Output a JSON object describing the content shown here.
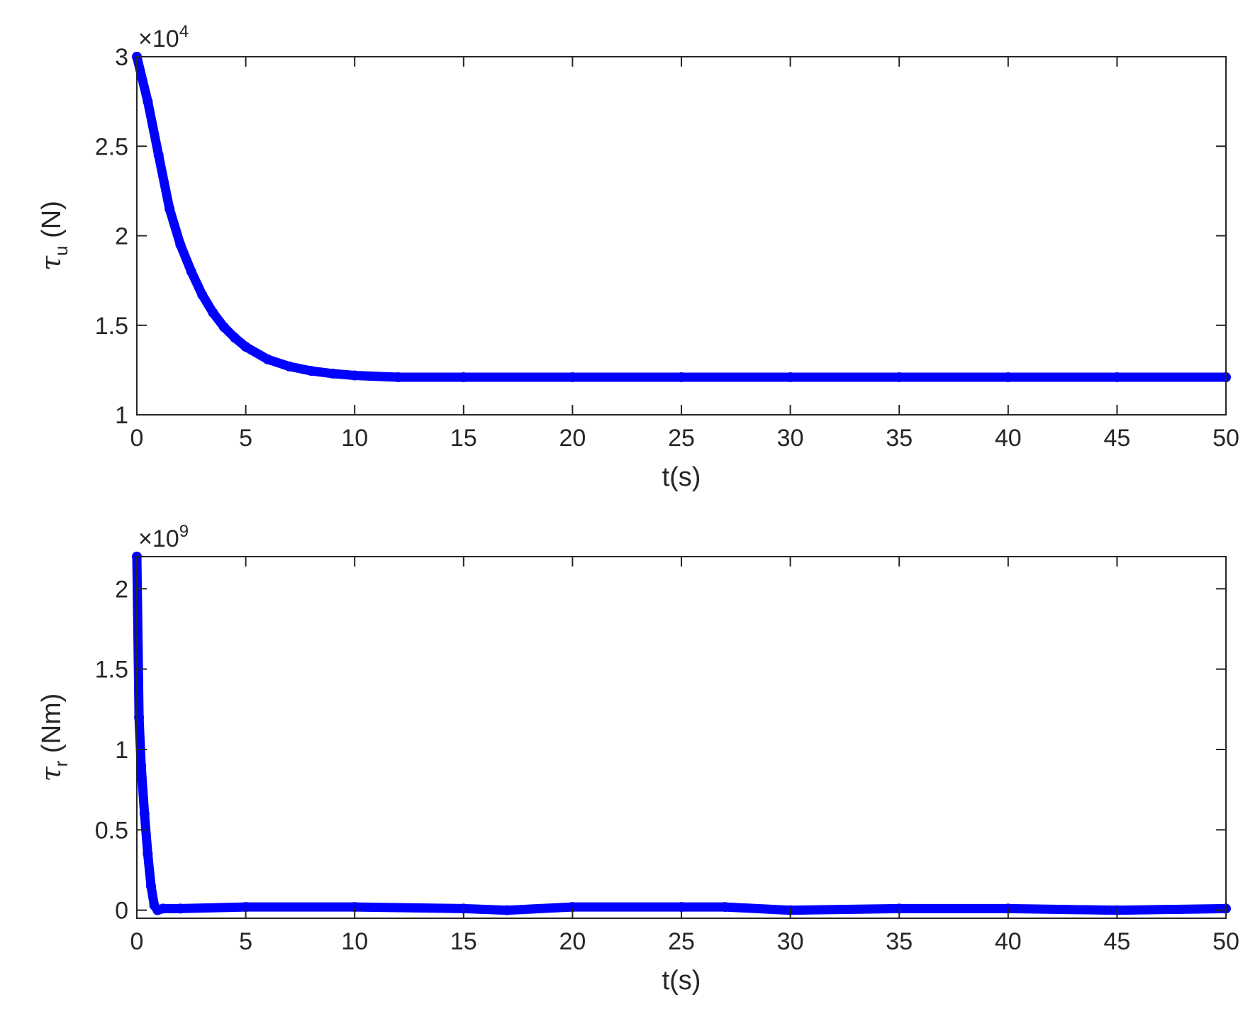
{
  "chart_data": [
    {
      "type": "line",
      "xlabel": "t(s)",
      "ylabel": {
        "symbol": "τ",
        "subscript": "u",
        "unit": " (N)"
      },
      "y_exponent": {
        "base": "×10",
        "power": "4"
      },
      "xlim": [
        0,
        50
      ],
      "ylim": [
        1,
        3
      ],
      "x_ticks": [
        0,
        5,
        10,
        15,
        20,
        25,
        30,
        35,
        40,
        45,
        50
      ],
      "x_tick_labels": [
        "0",
        "5",
        "10",
        "15",
        "20",
        "25",
        "30",
        "35",
        "40",
        "45",
        "50"
      ],
      "y_ticks": [
        1,
        1.5,
        2,
        2.5,
        3
      ],
      "y_tick_labels": [
        "1",
        "1.5",
        "2",
        "2.5",
        "3"
      ],
      "grid": false,
      "series": [
        {
          "color": "#0000ff",
          "x": [
            0,
            0.5,
            1,
            1.5,
            2,
            2.5,
            3,
            3.5,
            4,
            4.5,
            5,
            6,
            7,
            8,
            9,
            10,
            12,
            15,
            20,
            25,
            30,
            35,
            40,
            45,
            50
          ],
          "y": [
            3.0,
            2.75,
            2.45,
            2.15,
            1.95,
            1.8,
            1.67,
            1.57,
            1.49,
            1.43,
            1.38,
            1.31,
            1.27,
            1.245,
            1.23,
            1.22,
            1.21,
            1.21,
            1.21,
            1.21,
            1.21,
            1.21,
            1.21,
            1.21,
            1.21
          ]
        }
      ]
    },
    {
      "type": "line",
      "xlabel": "t(s)",
      "ylabel": {
        "symbol": "τ",
        "subscript": "r",
        "unit": " (Nm)"
      },
      "y_exponent": {
        "base": "×10",
        "power": "9"
      },
      "xlim": [
        0,
        50
      ],
      "ylim": [
        -0.05,
        2.2
      ],
      "x_ticks": [
        0,
        5,
        10,
        15,
        20,
        25,
        30,
        35,
        40,
        45,
        50
      ],
      "x_tick_labels": [
        "0",
        "5",
        "10",
        "15",
        "20",
        "25",
        "30",
        "35",
        "40",
        "45",
        "50"
      ],
      "y_ticks": [
        0,
        0.5,
        1,
        1.5,
        2
      ],
      "y_tick_labels": [
        "0",
        "0.5",
        "1",
        "1.5",
        "2"
      ],
      "grid": false,
      "series": [
        {
          "color": "#0000ff",
          "x": [
            0,
            0.1,
            0.2,
            0.35,
            0.5,
            0.65,
            0.8,
            0.95,
            1.2,
            2,
            5,
            10,
            15,
            17,
            20,
            25,
            27,
            30,
            35,
            40,
            45,
            50
          ],
          "y": [
            2.2,
            1.2,
            0.9,
            0.6,
            0.35,
            0.15,
            0.03,
            0.0,
            0.01,
            0.01,
            0.02,
            0.02,
            0.01,
            0.0,
            0.02,
            0.02,
            0.02,
            0.0,
            0.01,
            0.01,
            0.0,
            0.01
          ]
        }
      ]
    }
  ]
}
